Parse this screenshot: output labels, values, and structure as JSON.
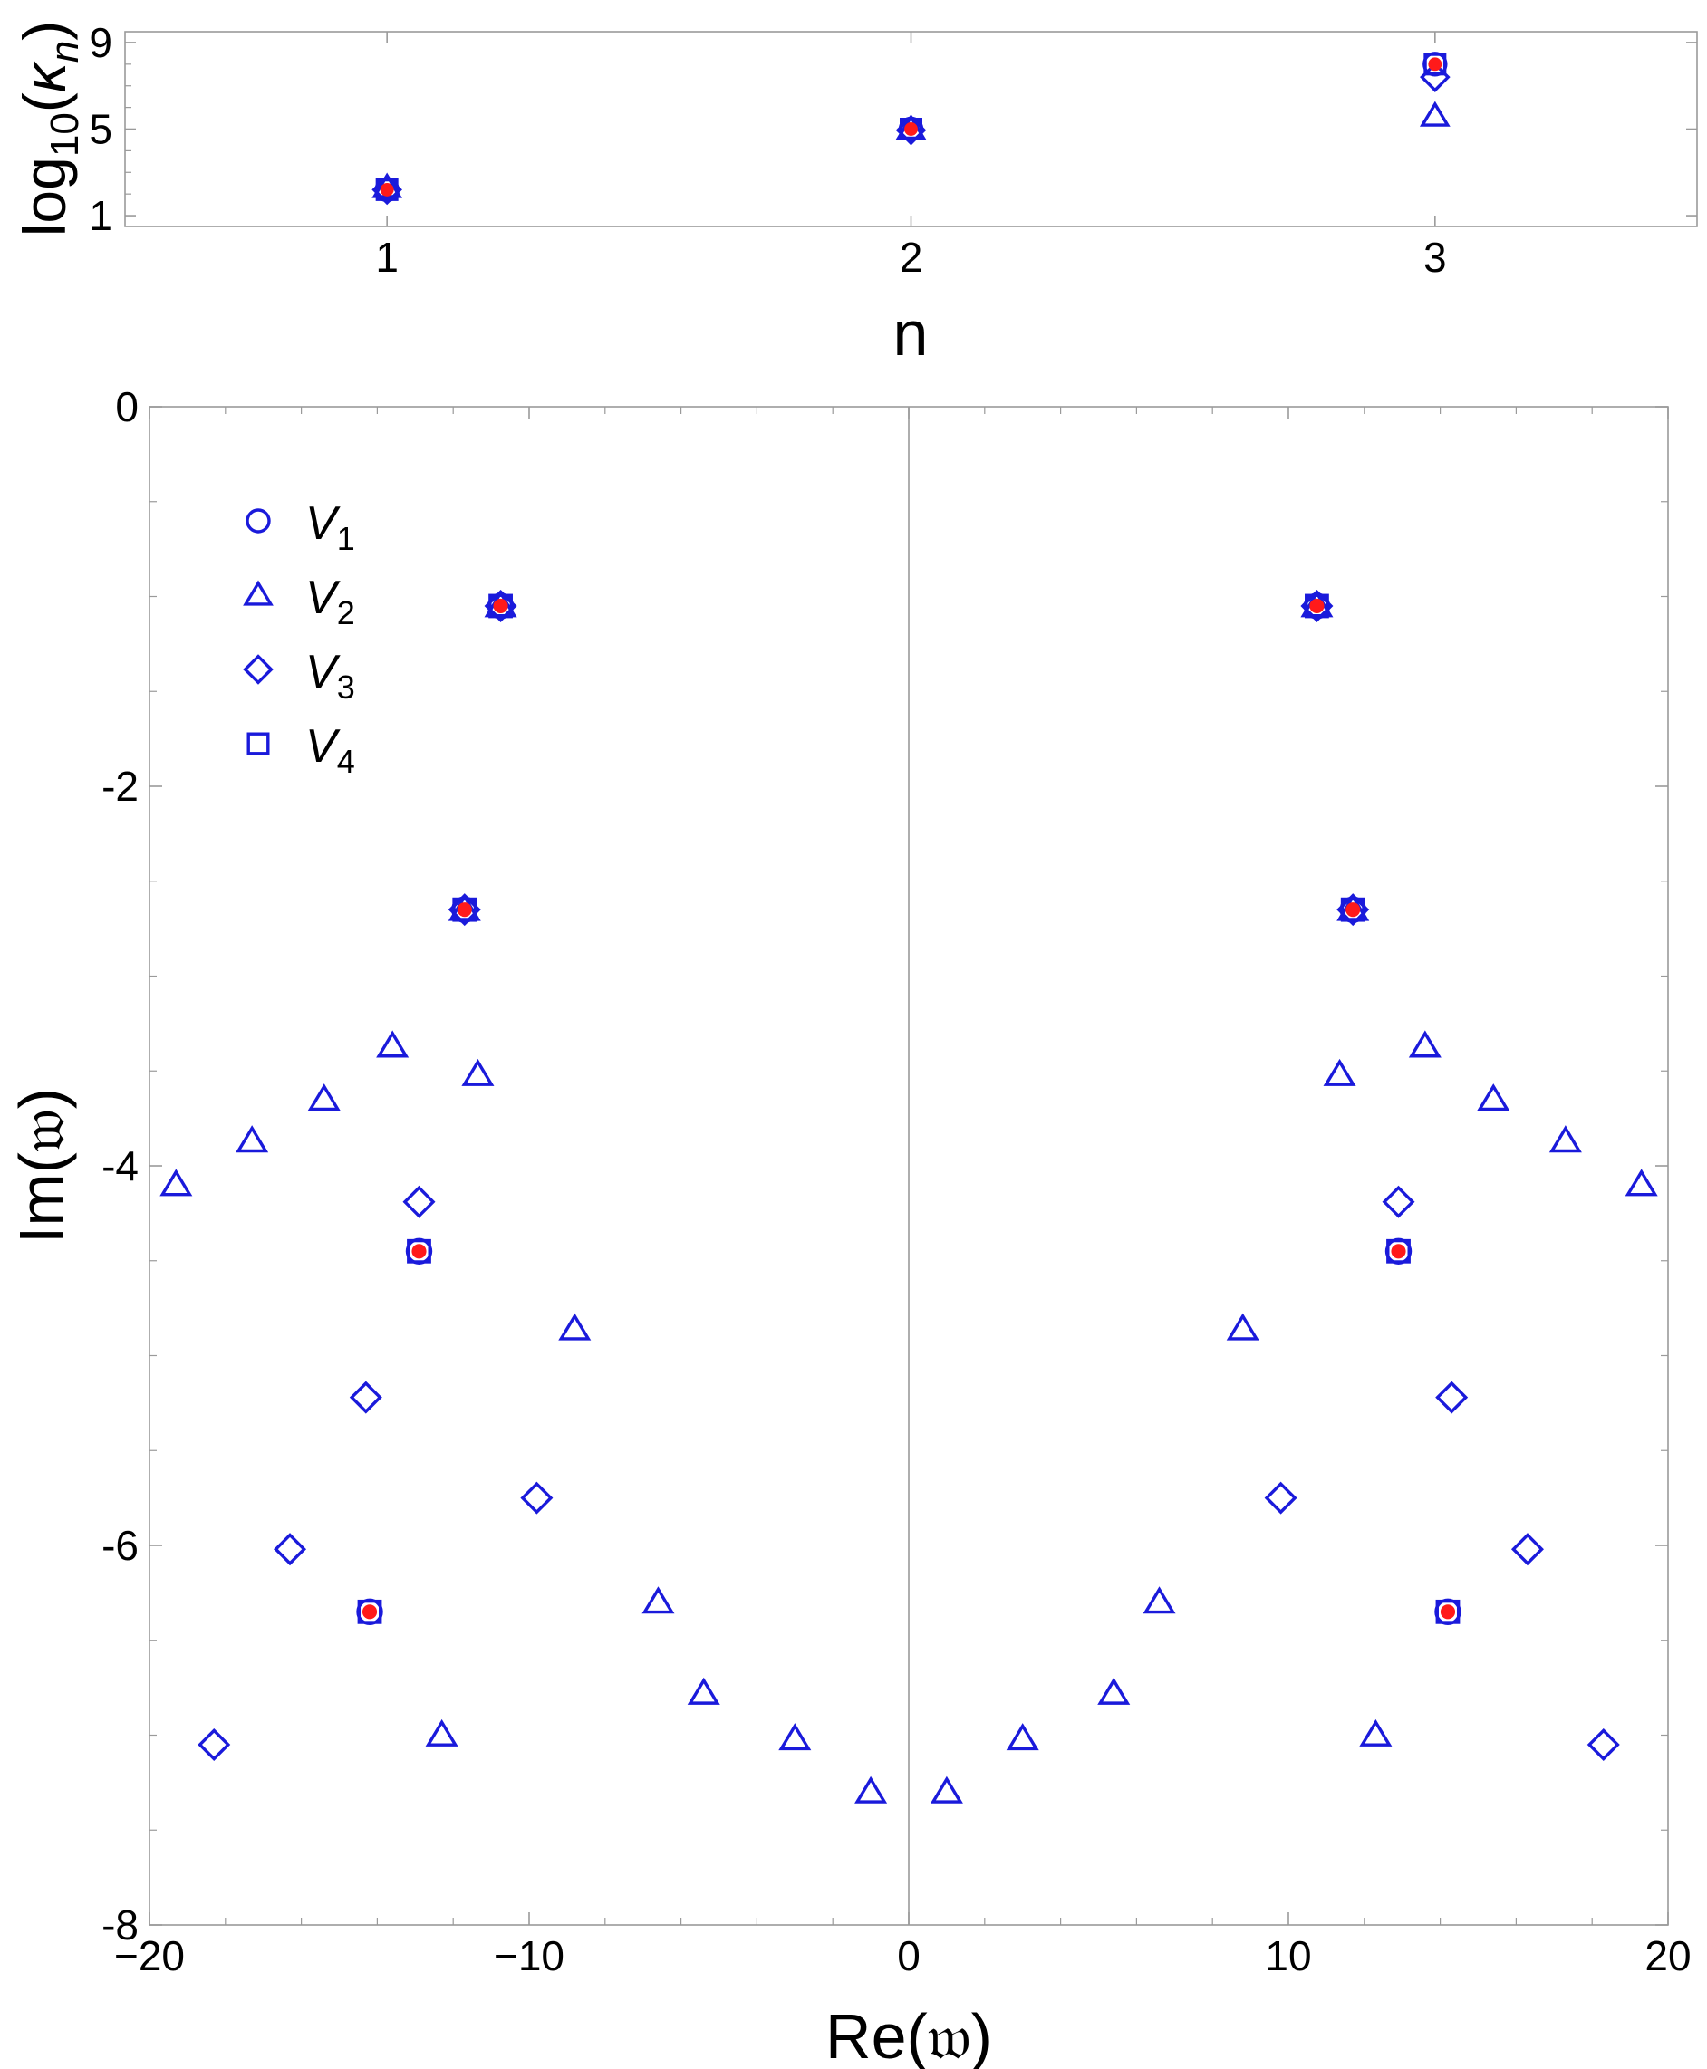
{
  "colors": {
    "marker": "#1a1adb",
    "overlay": "#ff1a1a",
    "frame": "#9a9a9a"
  },
  "chart_data": [
    {
      "type": "scatter",
      "title": "",
      "xlabel": "n",
      "ylabel_parts": {
        "base": "log",
        "sub": "10",
        "open": "(",
        "kappa": "κ",
        "kappa_sub": "n",
        "close": ")"
      },
      "xlim": [
        0.5,
        3.5
      ],
      "ylim": [
        0.5,
        9.5
      ],
      "xticks": [
        "1",
        "2",
        "3"
      ],
      "yticks": [
        "1",
        "5",
        "9"
      ],
      "grid": false,
      "series": [
        {
          "marker": "circle",
          "points": [
            [
              1,
              2.2
            ],
            [
              2,
              5.0
            ],
            [
              3,
              8.0
            ]
          ]
        },
        {
          "marker": "triangle",
          "points": [
            [
              1,
              2.3
            ],
            [
              2,
              5.0
            ],
            [
              3,
              5.6
            ]
          ]
        },
        {
          "marker": "diamond",
          "points": [
            [
              1,
              2.2
            ],
            [
              2,
              4.95
            ],
            [
              3,
              7.4
            ]
          ]
        },
        {
          "marker": "square",
          "points": [
            [
              1,
              2.2
            ],
            [
              2,
              5.0
            ],
            [
              3,
              8.0
            ]
          ]
        },
        {
          "marker": "overlay-dot",
          "points": [
            [
              1,
              2.2
            ],
            [
              2,
              5.0
            ],
            [
              3,
              8.0
            ]
          ]
        }
      ]
    },
    {
      "type": "scatter",
      "title": "",
      "xlabel": "Re(𝔴)",
      "ylabel": "Im(𝔴)",
      "xlim": [
        -20,
        20
      ],
      "ylim": [
        -8,
        0
      ],
      "xticks": [
        "−20",
        "−10",
        "0",
        "10",
        "20"
      ],
      "yticks": [
        "0",
        "-2",
        "-4",
        "-6",
        "-8"
      ],
      "grid": false,
      "legend_position": "top-left",
      "legend": [
        {
          "marker": "circle",
          "label": "V",
          "sub": "1"
        },
        {
          "marker": "triangle",
          "label": "V",
          "sub": "2"
        },
        {
          "marker": "diamond",
          "label": "V",
          "sub": "3"
        },
        {
          "marker": "square",
          "label": "V",
          "sub": "4"
        }
      ],
      "series": [
        {
          "name": "V1",
          "marker": "circle",
          "points": [
            [
              -10.75,
              -1.05
            ],
            [
              -11.7,
              -2.65
            ],
            [
              -12.9,
              -4.45
            ],
            [
              -14.2,
              -6.35
            ],
            [
              10.75,
              -1.05
            ],
            [
              11.7,
              -2.65
            ],
            [
              12.9,
              -4.45
            ],
            [
              14.2,
              -6.35
            ]
          ]
        },
        {
          "name": "V2",
          "marker": "triangle",
          "points": [
            [
              -10.75,
              -1.05
            ],
            [
              -11.7,
              -2.65
            ],
            [
              -13.6,
              -3.37
            ],
            [
              -11.35,
              -3.52
            ],
            [
              -15.4,
              -3.65
            ],
            [
              -17.3,
              -3.87
            ],
            [
              -19.3,
              -4.1
            ],
            [
              -8.8,
              -4.86
            ],
            [
              -6.6,
              -6.3
            ],
            [
              -5.4,
              -6.78
            ],
            [
              -3.0,
              -7.02
            ],
            [
              -1.0,
              -7.3
            ],
            [
              -12.3,
              -7.0
            ],
            [
              10.75,
              -1.05
            ],
            [
              11.7,
              -2.65
            ],
            [
              13.6,
              -3.37
            ],
            [
              11.35,
              -3.52
            ],
            [
              15.4,
              -3.65
            ],
            [
              17.3,
              -3.87
            ],
            [
              19.3,
              -4.1
            ],
            [
              8.8,
              -4.86
            ],
            [
              6.6,
              -6.3
            ],
            [
              5.4,
              -6.78
            ],
            [
              3.0,
              -7.02
            ],
            [
              1.0,
              -7.3
            ],
            [
              12.3,
              -7.0
            ]
          ]
        },
        {
          "name": "V3",
          "marker": "diamond",
          "points": [
            [
              -10.75,
              -1.05
            ],
            [
              -11.7,
              -2.65
            ],
            [
              -12.9,
              -4.19
            ],
            [
              -14.3,
              -5.22
            ],
            [
              -9.8,
              -5.75
            ],
            [
              -16.3,
              -6.02
            ],
            [
              -18.3,
              -7.05
            ],
            [
              10.75,
              -1.05
            ],
            [
              11.7,
              -2.65
            ],
            [
              12.9,
              -4.19
            ],
            [
              14.3,
              -5.22
            ],
            [
              9.8,
              -5.75
            ],
            [
              16.3,
              -6.02
            ],
            [
              18.3,
              -7.05
            ]
          ]
        },
        {
          "name": "V4",
          "marker": "square",
          "points": [
            [
              -10.75,
              -1.05
            ],
            [
              -11.7,
              -2.65
            ],
            [
              -12.9,
              -4.45
            ],
            [
              -14.2,
              -6.35
            ],
            [
              10.75,
              -1.05
            ],
            [
              11.7,
              -2.65
            ],
            [
              12.9,
              -4.45
            ],
            [
              14.2,
              -6.35
            ]
          ]
        },
        {
          "marker": "overlay-dot",
          "points": [
            [
              -10.75,
              -1.05
            ],
            [
              -11.7,
              -2.65
            ],
            [
              -12.9,
              -4.45
            ],
            [
              -14.2,
              -6.35
            ],
            [
              10.75,
              -1.05
            ],
            [
              11.7,
              -2.65
            ],
            [
              12.9,
              -4.45
            ],
            [
              14.2,
              -6.35
            ]
          ]
        }
      ]
    }
  ]
}
